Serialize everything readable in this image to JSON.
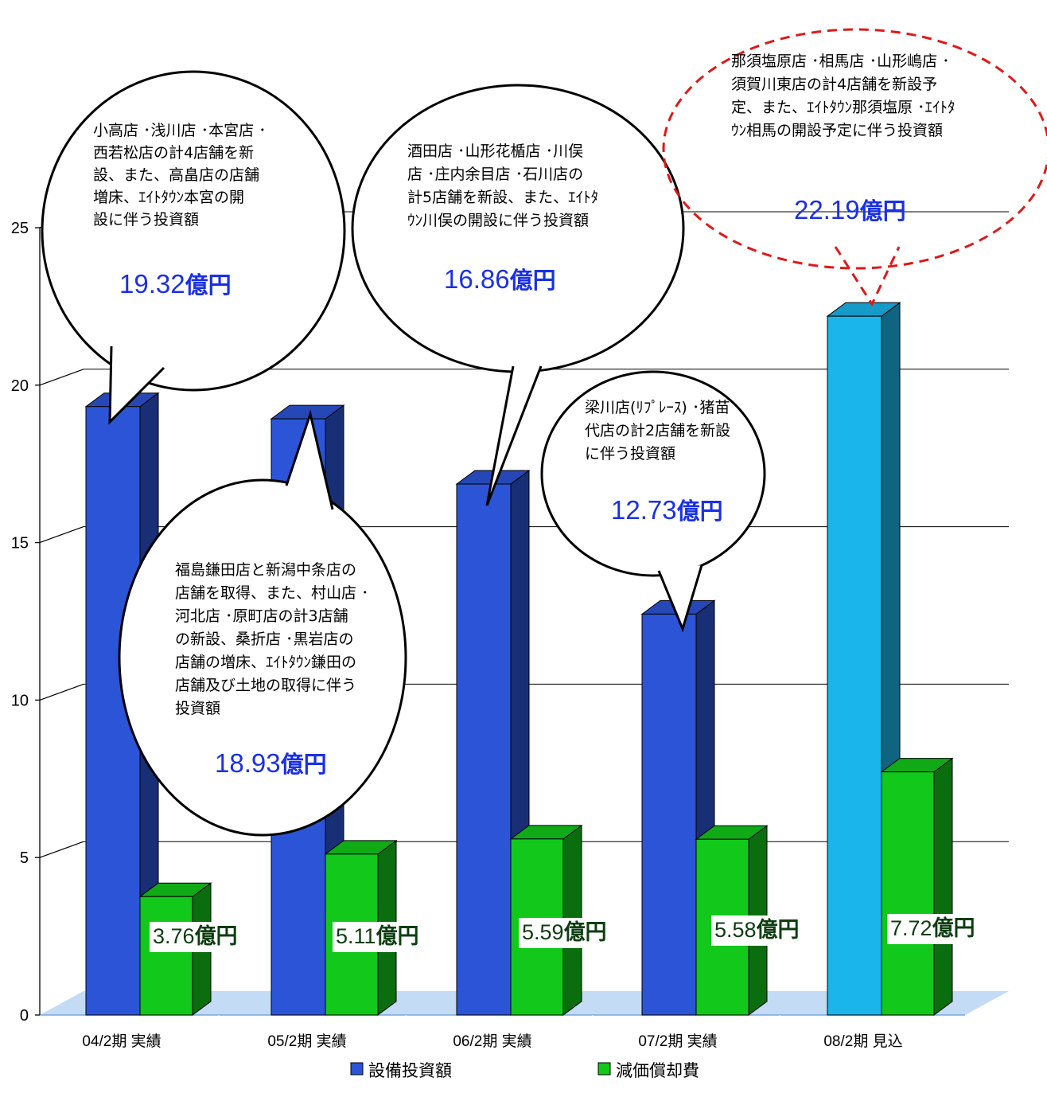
{
  "chart_data": {
    "type": "bar",
    "categories": [
      "04/2期 実績",
      "05/2期 実績",
      "06/2期 実績",
      "07/2期 実績",
      "08/2期 見込"
    ],
    "series": [
      {
        "name": "設備投資額",
        "values": [
          19.32,
          18.93,
          16.86,
          12.73,
          22.19
        ]
      },
      {
        "name": "減価償却費",
        "values": [
          3.76,
          5.11,
          5.59,
          5.58,
          7.72
        ]
      }
    ],
    "y_ticks": [
      "0",
      "5",
      "10",
      "15",
      "20",
      "25"
    ],
    "ylim": [
      0,
      25
    ],
    "grid": true,
    "legend": "bottom",
    "colors": {
      "capex": "#2b55d6",
      "capex_forecast": "#1ab5ea",
      "depreciation": "#12c81a",
      "floor": "#c3dbf5",
      "bubble_value": "#1a30e6",
      "label_value": "#0d3d10"
    },
    "depreciation_labels": [
      {
        "num": "3.76",
        "unit": "億円"
      },
      {
        "num": "5.11",
        "unit": "億円"
      },
      {
        "num": "5.59",
        "unit": "億円"
      },
      {
        "num": "5.58",
        "unit": "億円"
      },
      {
        "num": "7.72",
        "unit": "億円"
      }
    ],
    "annotations": [
      {
        "lines": [
          "小高店 ･浅川店 ･本宮店 ･",
          "西若松店の計4店舗を新",
          "設、また、高畠店の店舗",
          "増床、ｴｲﾄﾀｳﾝ本宮の開",
          "設に伴う投資額"
        ],
        "num": "19.32",
        "unit": "億円"
      },
      {
        "lines": [
          "福島鎌田店と新潟中条店の",
          "店舗を取得、また、村山店 ･",
          "河北店 ･原町店の計3店舗",
          "の新設、桑折店 ･黒岩店の",
          "店舗の増床、ｴｲﾄﾀｳﾝ鎌田の",
          "店舗及び土地の取得に伴う",
          "投資額"
        ],
        "num": "18.93",
        "unit": "億円"
      },
      {
        "lines": [
          "酒田店 ･山形花楯店 ･川俣",
          "店 ･庄内余目店 ･石川店の",
          "計5店舗を新設、また、ｴｲﾄﾀ",
          "ｳﾝ川俣の開設に伴う投資額"
        ],
        "num": "16.86",
        "unit": "億円"
      },
      {
        "lines": [
          "梁川店(ﾘﾌﾟﾚｰｽ) ･猪苗",
          "代店の計2店舗を新設",
          "に伴う投資額"
        ],
        "num": "12.73",
        "unit": "億円"
      },
      {
        "lines": [
          "那須塩原店 ･相馬店 ･山形嶋店 ･",
          "須賀川東店の計4店舗を新設予",
          "定、また、ｴｲﾄﾀｳﾝ那須塩原 ･ｴｲﾄﾀ",
          "ｳﾝ相馬の開設予定に伴う投資額"
        ],
        "num": "22.19",
        "unit": "億円"
      }
    ]
  }
}
